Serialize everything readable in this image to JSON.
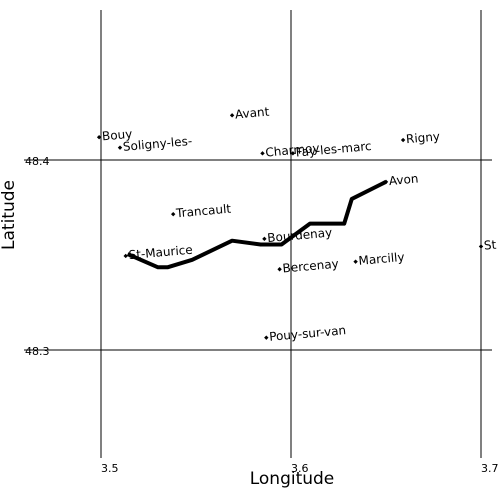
{
  "axes": {
    "xlabel": "Longitude",
    "ylabel": "Latitude",
    "x_ticks": [
      {
        "value": 3.5,
        "label": "3.5"
      },
      {
        "value": 3.6,
        "label": "3.6"
      },
      {
        "value": 3.7,
        "label": "3.7"
      }
    ],
    "y_ticks": [
      {
        "value": 48.4,
        "label": "48.4"
      },
      {
        "value": 48.3,
        "label": "48.3"
      }
    ]
  },
  "places": [
    {
      "name": "Bouy",
      "lon": 3.499,
      "lat": 48.412
    },
    {
      "name": "Soligny-les-",
      "lon": 3.51,
      "lat": 48.4065
    },
    {
      "name": "Avant",
      "lon": 3.569,
      "lat": 48.4235
    },
    {
      "name": "Charmoy",
      "lon": 3.585,
      "lat": 48.4035
    },
    {
      "name": "Fay-les-marc",
      "lon": 3.601,
      "lat": 48.4035
    },
    {
      "name": "Rigny",
      "lon": 3.659,
      "lat": 48.4105
    },
    {
      "name": "Avon",
      "lon": 3.65,
      "lat": 48.3885
    },
    {
      "name": "Trancault",
      "lon": 3.538,
      "lat": 48.3715
    },
    {
      "name": "Bourdenay",
      "lon": 3.586,
      "lat": 48.3585
    },
    {
      "name": "St-Maurice",
      "lon": 3.513,
      "lat": 48.3495
    },
    {
      "name": "Bercenay",
      "lon": 3.594,
      "lat": 48.3425
    },
    {
      "name": "Marcilly",
      "lon": 3.634,
      "lat": 48.3465
    },
    {
      "name": "Pouy-sur-van",
      "lon": 3.587,
      "lat": 48.3065
    },
    {
      "name": "St",
      "lon": 3.7,
      "lat": 48.3545
    }
  ],
  "route": {
    "points": [
      [
        3.514,
        48.3505
      ],
      [
        3.53,
        48.3435
      ],
      [
        3.535,
        48.3435
      ],
      [
        3.548,
        48.3475
      ],
      [
        3.569,
        48.3575
      ],
      [
        3.584,
        48.3555
      ],
      [
        3.595,
        48.3555
      ],
      [
        3.61,
        48.3665
      ],
      [
        3.628,
        48.3665
      ],
      [
        3.632,
        48.3795
      ],
      [
        3.65,
        48.3885
      ]
    ]
  },
  "colors": {
    "line": "#000000",
    "text": "#000000",
    "background": "#ffffff"
  }
}
